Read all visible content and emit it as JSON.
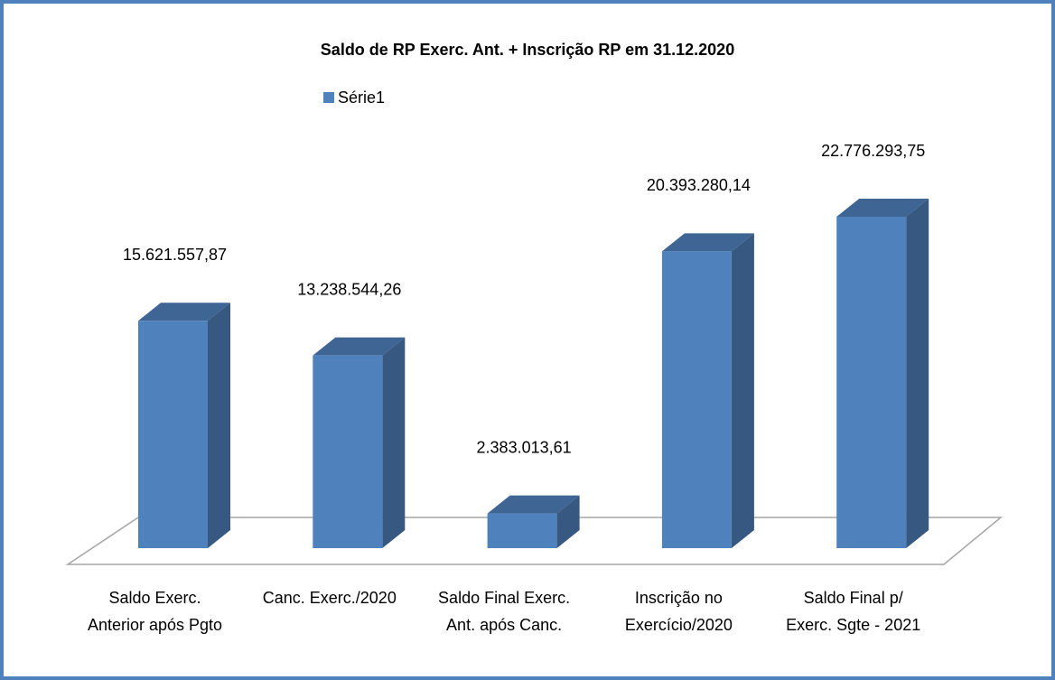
{
  "chart_data": {
    "type": "bar3d",
    "title": "Saldo de RP Exerc. Ant. + Inscrição RP em 31.12.2020",
    "categories": [
      "Saldo Exerc. Anterior após Pgto",
      "Canc. Exerc./2020",
      "Saldo Final Exerc. Ant. após Canc.",
      "Inscrição no Exercício/2020",
      "Saldo Final p/ Exerc. Sgte - 2021"
    ],
    "series": [
      {
        "name": "Série1",
        "color": "#4f81bd",
        "values": [
          15621557.87,
          13238544.26,
          2383013.61,
          20393280.14,
          22776293.75
        ],
        "value_labels": [
          "15.621.557,87",
          "13.238.544,26",
          "2.383.013,61",
          "20.393.280,14",
          "22.776.293,75"
        ]
      }
    ],
    "legend": "top"
  }
}
